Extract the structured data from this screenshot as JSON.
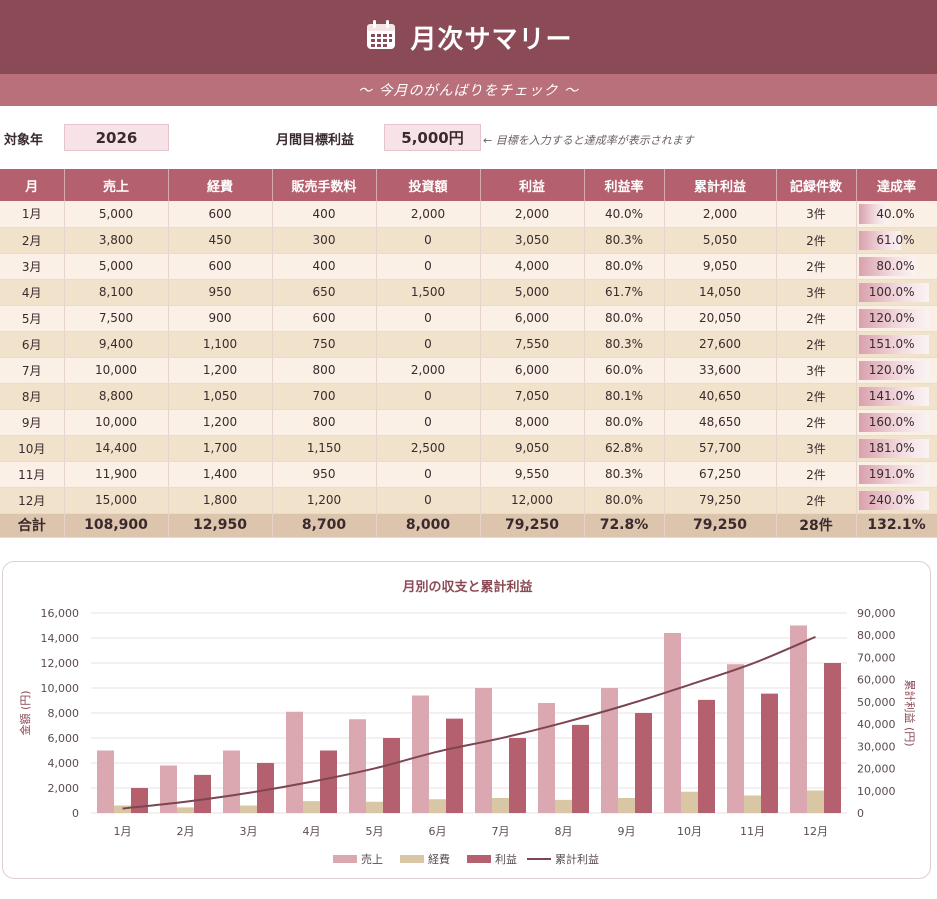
{
  "header": {
    "title": "月次サマリー",
    "icon": "calendar-icon",
    "subtitle": "〜 今月のがんばりをチェック 〜"
  },
  "params": {
    "year_label": "対象年",
    "year_value": "2026",
    "target_label": "月間目標利益",
    "target_value": "5,000円",
    "hint": "← 目標を入力すると達成率が表示されます"
  },
  "table": {
    "headers": [
      "月",
      "売上",
      "経費",
      "販売手数料",
      "投資額",
      "利益",
      "利益率",
      "累計利益",
      "記録件数",
      "達成率"
    ],
    "rows": [
      [
        "1月",
        "5,000",
        "600",
        "400",
        "2,000",
        "2,000",
        "40.0%",
        "2,000",
        "3件",
        "40.0%"
      ],
      [
        "2月",
        "3,800",
        "450",
        "300",
        "0",
        "3,050",
        "80.3%",
        "5,050",
        "2件",
        "61.0%"
      ],
      [
        "3月",
        "5,000",
        "600",
        "400",
        "0",
        "4,000",
        "80.0%",
        "9,050",
        "2件",
        "80.0%"
      ],
      [
        "4月",
        "8,100",
        "950",
        "650",
        "1,500",
        "5,000",
        "61.7%",
        "14,050",
        "3件",
        "100.0%"
      ],
      [
        "5月",
        "7,500",
        "900",
        "600",
        "0",
        "6,000",
        "80.0%",
        "20,050",
        "2件",
        "120.0%"
      ],
      [
        "6月",
        "9,400",
        "1,100",
        "750",
        "0",
        "7,550",
        "80.3%",
        "27,600",
        "2件",
        "151.0%"
      ],
      [
        "7月",
        "10,000",
        "1,200",
        "800",
        "2,000",
        "6,000",
        "60.0%",
        "33,600",
        "3件",
        "120.0%"
      ],
      [
        "8月",
        "8,800",
        "1,050",
        "700",
        "0",
        "7,050",
        "80.1%",
        "40,650",
        "2件",
        "141.0%"
      ],
      [
        "9月",
        "10,000",
        "1,200",
        "800",
        "0",
        "8,000",
        "80.0%",
        "48,650",
        "2件",
        "160.0%"
      ],
      [
        "10月",
        "14,400",
        "1,700",
        "1,150",
        "2,500",
        "9,050",
        "62.8%",
        "57,700",
        "3件",
        "181.0%"
      ],
      [
        "11月",
        "11,900",
        "1,400",
        "950",
        "0",
        "9,550",
        "80.3%",
        "67,250",
        "2件",
        "191.0%"
      ],
      [
        "12月",
        "15,000",
        "1,800",
        "1,200",
        "0",
        "12,000",
        "80.0%",
        "79,250",
        "2件",
        "240.0%"
      ]
    ],
    "achievement_values": [
      40.0,
      61.0,
      80.0,
      100.0,
      120.0,
      151.0,
      120.0,
      141.0,
      160.0,
      181.0,
      191.0,
      240.0
    ],
    "total": [
      "合計",
      "108,900",
      "12,950",
      "8,700",
      "8,000",
      "79,250",
      "72.8%",
      "79,250",
      "28件",
      "132.1%"
    ]
  },
  "colors": {
    "header": "#8b4b56",
    "subbar": "#b9707b",
    "table_header": "#b5606e",
    "sales": "#dba7b1",
    "expense": "#d9c6a5",
    "profit": "#b5606e",
    "cumulative": "#7d4550"
  },
  "chart_data": {
    "type": "bar",
    "title": "月別の収支と累計利益",
    "categories": [
      "1月",
      "2月",
      "3月",
      "4月",
      "5月",
      "6月",
      "7月",
      "8月",
      "9月",
      "10月",
      "11月",
      "12月"
    ],
    "series": [
      {
        "name": "売上",
        "type": "bar",
        "axis": "left",
        "values": [
          5000,
          3800,
          5000,
          8100,
          7500,
          9400,
          10000,
          8800,
          10000,
          14400,
          11900,
          15000
        ]
      },
      {
        "name": "経費",
        "type": "bar",
        "axis": "left",
        "values": [
          600,
          450,
          600,
          950,
          900,
          1100,
          1200,
          1050,
          1200,
          1700,
          1400,
          1800
        ]
      },
      {
        "name": "利益",
        "type": "bar",
        "axis": "left",
        "values": [
          2000,
          3050,
          4000,
          5000,
          6000,
          7550,
          6000,
          7050,
          8000,
          9050,
          9550,
          12000
        ]
      },
      {
        "name": "累計利益",
        "type": "line",
        "axis": "right",
        "values": [
          2000,
          5050,
          9050,
          14050,
          20050,
          27600,
          33600,
          40650,
          48650,
          57700,
          67250,
          79250
        ]
      }
    ],
    "ylabel": "金額 (円)",
    "ylabel_right": "累計利益 (円)",
    "ylim": [
      0,
      16000
    ],
    "ylim_right": [
      0,
      90000
    ],
    "yticks": [
      "0",
      "2,000",
      "4,000",
      "6,000",
      "8,000",
      "10,000",
      "12,000",
      "14,000",
      "16,000"
    ],
    "yticks_right": [
      "0",
      "10,000",
      "20,000",
      "30,000",
      "40,000",
      "50,000",
      "60,000",
      "70,000",
      "80,000",
      "90,000"
    ],
    "grid": true,
    "legend": "bottom"
  }
}
